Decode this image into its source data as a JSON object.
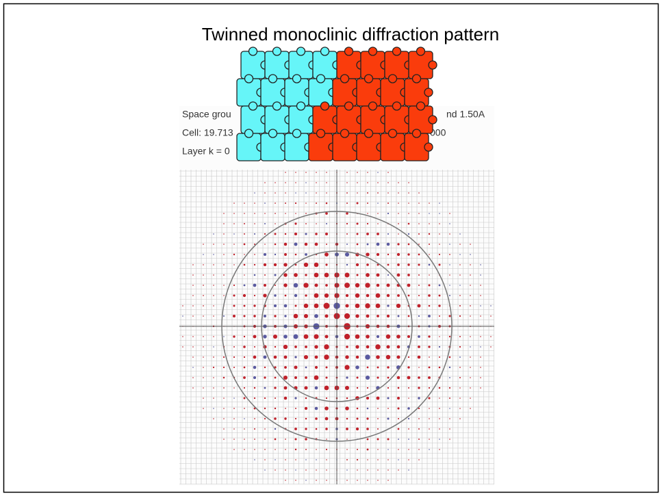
{
  "slide": {
    "title": "Twinned monoclinic diffraction pattern",
    "header_lines": [
      {
        "left": "Space grou",
        "right": "nd  1.50A"
      },
      {
        "left": "Cell: 19.713",
        "right": "000"
      },
      {
        "left": "Layer   k =   0"
      }
    ]
  }
}
